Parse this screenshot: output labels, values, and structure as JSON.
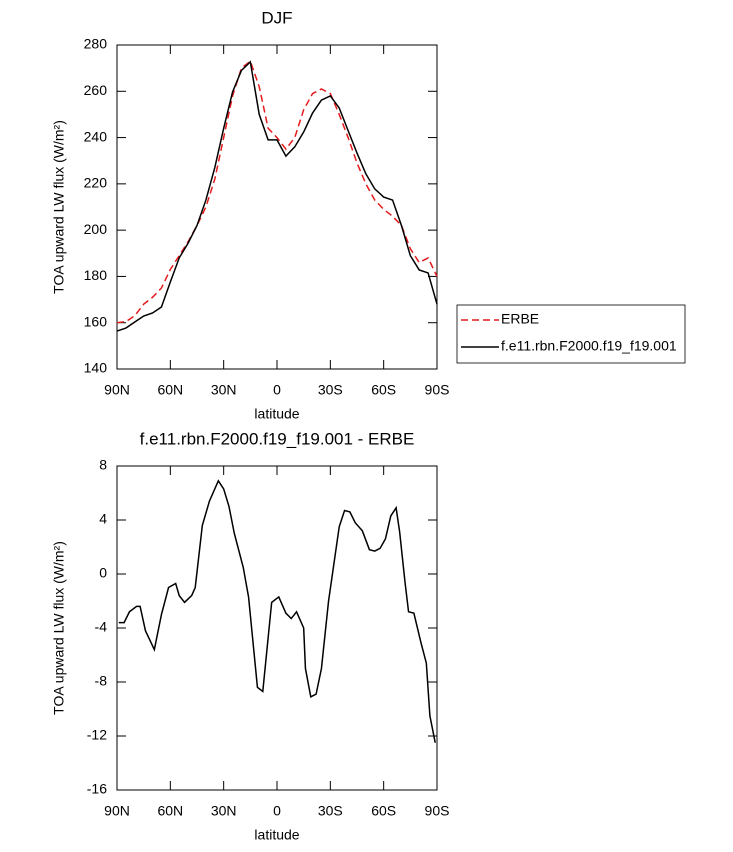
{
  "chart_data": [
    {
      "type": "line",
      "title": "DJF",
      "x_label": "latitude",
      "y_label": "TOA upward LW flux (W/m²)",
      "x": [
        90,
        85,
        80,
        75,
        70,
        65,
        60,
        55,
        50,
        45,
        40,
        35,
        30,
        25,
        20,
        15,
        10,
        5,
        0,
        -5,
        -10,
        -15,
        -20,
        -25,
        -30,
        -35,
        -40,
        -45,
        -50,
        -55,
        -60,
        -65,
        -70,
        -75,
        -80,
        -85,
        -90
      ],
      "series": [
        {
          "name": "ERBE",
          "color": "#e41a1c",
          "dash": "dashed",
          "values": [
            160,
            160.5,
            163,
            168,
            171,
            175,
            183,
            189,
            195,
            202,
            210,
            222,
            240,
            258,
            270,
            273,
            262,
            244,
            240,
            235,
            240,
            252,
            259,
            261,
            259,
            250,
            240,
            229,
            220,
            213,
            209,
            206,
            202,
            192,
            186,
            188,
            180
          ]
        },
        {
          "name": "f.e11.rbn.F2000.f19_f19.001",
          "color": "#000000",
          "dash": "solid",
          "values": [
            156.4,
            157.7,
            160.3,
            162.9,
            164.2,
            166.8,
            177.6,
            188,
            194.4,
            202,
            213,
            227,
            244,
            259.7,
            269,
            272.7,
            250,
            239,
            239,
            232,
            236,
            242.4,
            250.6,
            256.2,
            258,
            252.8,
            243,
            233.3,
            224.3,
            217.8,
            214.3,
            213,
            202,
            189,
            182.8,
            181.5,
            168
          ]
        }
      ],
      "xlim": [
        90,
        -90
      ],
      "xticks": [
        {
          "value": 90,
          "label": "90N"
        },
        {
          "value": 60,
          "label": "60N"
        },
        {
          "value": 30,
          "label": "30N"
        },
        0,
        {
          "value": -30,
          "label": "30S"
        },
        {
          "value": -60,
          "label": "60S"
        },
        {
          "value": -90,
          "label": "90S"
        }
      ],
      "ylim": [
        140,
        280
      ],
      "yticks": [
        140,
        160,
        180,
        200,
        220,
        240,
        260,
        280
      ],
      "legend": "right"
    },
    {
      "type": "line",
      "title": "f.e11.rbn.F2000.f19_f19.001 - ERBE",
      "x_label": "latitude",
      "y_label": "TOA upward LW flux (W/m²)",
      "x": [
        89,
        86,
        83,
        79,
        77,
        74,
        69,
        65,
        61,
        57,
        55,
        52,
        48,
        46,
        42,
        38,
        33,
        30,
        27,
        24,
        19,
        16,
        11,
        8,
        3,
        -1,
        -5,
        -8,
        -11,
        -15,
        -16,
        -19,
        -22,
        -25,
        -29,
        -35,
        -38,
        -41,
        -44,
        -48,
        -52,
        -55,
        -58,
        -61,
        -64,
        -67,
        -69,
        -72,
        -74,
        -77,
        -81,
        -84,
        -86,
        -89
      ],
      "series": [
        {
          "name": null,
          "color": "#000000",
          "dash": "solid",
          "values": [
            -3.6,
            -3.6,
            -2.8,
            -2.4,
            -2.4,
            -4.2,
            -5.6,
            -3,
            -1,
            -0.7,
            -1.6,
            -2.1,
            -1.6,
            -1,
            3.6,
            5.4,
            6.9,
            6.3,
            5,
            3,
            0.5,
            -1.7,
            -8.4,
            -8.7,
            -2.1,
            -1.7,
            -2.9,
            -3.3,
            -2.8,
            -4,
            -7,
            -9.1,
            -8.9,
            -7,
            -2,
            3.5,
            4.7,
            4.6,
            3.8,
            3.2,
            1.8,
            1.7,
            1.9,
            2.6,
            4.3,
            4.9,
            3.1,
            -0.6,
            -2.8,
            -2.9,
            -5.1,
            -6.6,
            -10.5,
            -12.5
          ]
        }
      ],
      "xlim": [
        90,
        -90
      ],
      "xticks": [
        {
          "value": 90,
          "label": "90N"
        },
        {
          "value": 60,
          "label": "60N"
        },
        {
          "value": 30,
          "label": "30N"
        },
        0,
        {
          "value": -30,
          "label": "30S"
        },
        {
          "value": -60,
          "label": "60S"
        },
        {
          "value": -90,
          "label": "90S"
        }
      ],
      "ylim": [
        -16,
        8
      ],
      "yticks": [
        -16,
        -12,
        -8,
        -4,
        0,
        4,
        8
      ]
    }
  ]
}
